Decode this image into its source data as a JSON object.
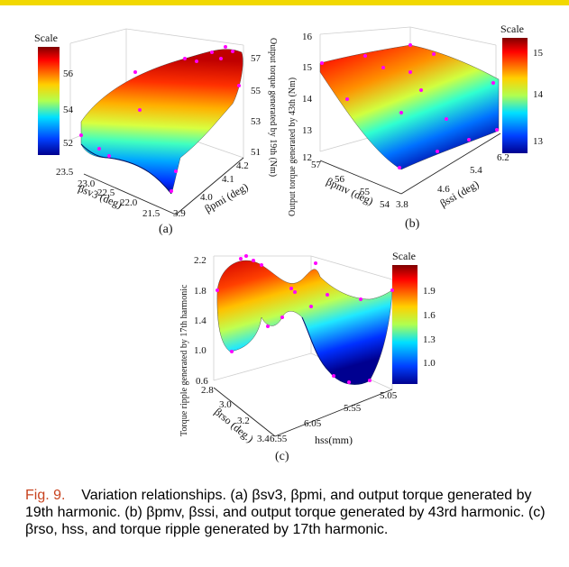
{
  "panels": {
    "a": {
      "subfig_label": "(a)",
      "scale_title": "Scale",
      "colorbar_ticks": [
        "56",
        "54",
        "52"
      ],
      "z_axis_label": "Output torque generated by 19th (Nm)",
      "z_ticks": [
        "57",
        "55",
        "53",
        "51"
      ],
      "x_axis_label": "βsv3 (deg)",
      "x_ticks": [
        "23.5",
        "23.0",
        "22.5",
        "22.0",
        "21.5"
      ],
      "y_axis_label": "βpmi (deg)",
      "y_ticks": [
        "3.9",
        "4.0",
        "4.1",
        "4.2"
      ]
    },
    "b": {
      "subfig_label": "(b)",
      "scale_title": "Scale",
      "colorbar_ticks": [
        "15",
        "14",
        "13"
      ],
      "z_axis_label": "Output torque generated by 43th (Nm)",
      "z_ticks": [
        "16",
        "15",
        "14",
        "13",
        "12"
      ],
      "x_axis_label": "βpmv (deg)",
      "x_ticks": [
        "57",
        "56",
        "55",
        "54"
      ],
      "y_axis_label": "βssi (deg)",
      "y_ticks": [
        "3.8",
        "4.6",
        "5.4",
        "6.2"
      ]
    },
    "c": {
      "subfig_label": "(c)",
      "scale_title": "Scale",
      "colorbar_ticks": [
        "1.9",
        "1.6",
        "1.3",
        "1.0"
      ],
      "z_axis_label": "Torque ripple generated by 17th harmonic",
      "z_ticks": [
        "2.2",
        "1.8",
        "1.4",
        "1.0",
        "0.6"
      ],
      "x_axis_label": "βrso (deg.)",
      "x_ticks": [
        "2.8",
        "3.0",
        "3.2",
        "3.4"
      ],
      "y_axis_label": "hss(mm)",
      "y_ticks": [
        "6.55",
        "6.05",
        "5.55",
        "5.05"
      ]
    }
  },
  "caption": {
    "lead": "Fig. 9.",
    "body": "Variation relationships. (a) βsv3, βpmi, and output torque generated by 19th harmonic. (b) βpmv, βssi, and output torque generated by 43rd harmonic. (c) βrso, hss, and torque ripple generated by 17th harmonic."
  },
  "colors": {
    "jet_high": "#a00000",
    "jet_mid": "#f5f500",
    "jet_low": "#00008f",
    "marker": "#ff00ff",
    "caption_lead": "#c8431f",
    "top_bar": "#f2d800"
  }
}
